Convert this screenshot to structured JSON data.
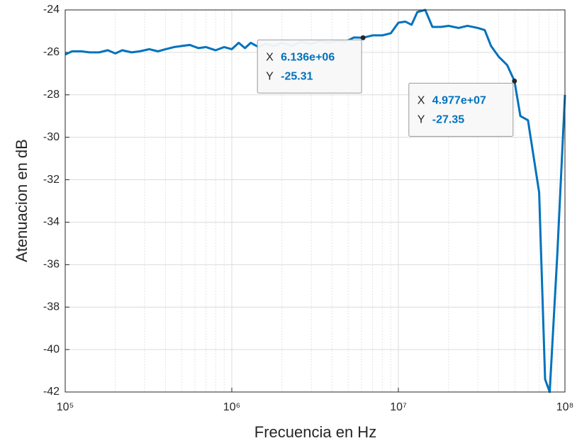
{
  "chart_data": {
    "type": "line",
    "xlabel": "Frecuencia en Hz",
    "ylabel": "Atenuacion en dB",
    "xscale": "log",
    "grid": true,
    "minor_grid": true,
    "color": "#0072bd",
    "xlim": [
      100000,
      100000000
    ],
    "ylim": [
      -42,
      -24
    ],
    "xticks": [
      {
        "value": 100000,
        "label": "10⁵"
      },
      {
        "value": 1000000,
        "label": "10⁶"
      },
      {
        "value": 10000000,
        "label": "10⁷"
      },
      {
        "value": 100000000,
        "label": "10⁸"
      }
    ],
    "yticks": [
      -42,
      -40,
      -38,
      -36,
      -34,
      -32,
      -30,
      -28,
      -26,
      -24
    ],
    "x": [
      100000,
      110000,
      125000,
      140000,
      160000,
      180000,
      200000,
      220000,
      250000,
      280000,
      320000,
      360000,
      400000,
      450000,
      500000,
      560000,
      630000,
      700000,
      800000,
      900000,
      1000000,
      1100000,
      1200000,
      1300000,
      1450000,
      1600000,
      1800000,
      2000000,
      2300000,
      2600000,
      3000000,
      3400000,
      3800000,
      4300000,
      4800000,
      5400000,
      6136000,
      7000000,
      8000000,
      9000000,
      10000000,
      11000000,
      12000000,
      13000000,
      14500000,
      16000000,
      18000000,
      20000000,
      23000000,
      26000000,
      30000000,
      33000000,
      36000000,
      40000000,
      45000000,
      49770000,
      54000000,
      60000000,
      70000000,
      76000000,
      81000000,
      90000000,
      100000000
    ],
    "values": [
      -26.1,
      -25.95,
      -25.95,
      -26.0,
      -26.0,
      -25.9,
      -26.05,
      -25.9,
      -26.0,
      -25.95,
      -25.85,
      -25.95,
      -25.85,
      -25.75,
      -25.7,
      -25.65,
      -25.8,
      -25.75,
      -25.9,
      -25.75,
      -25.85,
      -25.55,
      -25.8,
      -25.55,
      -25.75,
      -25.6,
      -25.7,
      -25.55,
      -25.7,
      -25.5,
      -25.6,
      -25.45,
      -25.55,
      -25.45,
      -25.5,
      -25.3,
      -25.31,
      -25.2,
      -25.2,
      -25.1,
      -24.6,
      -24.55,
      -24.7,
      -24.1,
      -24.0,
      -24.8,
      -24.8,
      -24.75,
      -24.85,
      -24.75,
      -24.85,
      -24.95,
      -25.7,
      -26.2,
      -26.6,
      -27.35,
      -29.0,
      -29.2,
      -32.6,
      -41.4,
      -42.0,
      -35.5,
      -28.0
    ],
    "datatip_labels": [
      "X",
      "Y"
    ],
    "datatips": [
      {
        "x": 6136000,
        "x_label": "6.136e+06",
        "y": -25.31
      },
      {
        "x": 49770000,
        "x_label": "4.977e+07",
        "y": -27.35
      }
    ]
  }
}
